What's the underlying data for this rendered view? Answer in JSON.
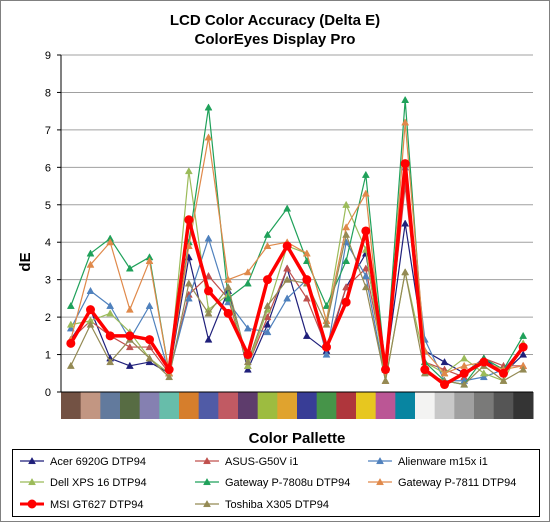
{
  "chart_data": {
    "type": "line",
    "title": "LCD Color Accuracy (Delta E)",
    "subtitle": "ColorEyes Display Pro",
    "xlabel": "Color Pallette",
    "ylabel": "dE",
    "ylim": [
      0,
      9
    ],
    "yticks": [
      "0",
      "1",
      "2",
      "3",
      "4",
      "5",
      "6",
      "7",
      "8",
      "9"
    ],
    "grid": true,
    "legend_position": "bottom",
    "palette_colors": [
      "#735244",
      "#C29682",
      "#627A9D",
      "#576C43",
      "#8580B1",
      "#67BDAA",
      "#D67E2C",
      "#505BA6",
      "#C15A63",
      "#5E3C6C",
      "#9DBC40",
      "#E0A32E",
      "#383D96",
      "#469449",
      "#AF363C",
      "#E7C71F",
      "#BB5695",
      "#0885A1",
      "#F3F3F2",
      "#C8C8C8",
      "#A0A0A0",
      "#7A7A79",
      "#555555",
      "#343434"
    ],
    "series": [
      {
        "name": "Acer 6920G DTP94",
        "color": "#1F1F7A",
        "marker": "triangle",
        "values": [
          1.4,
          2.2,
          0.9,
          0.7,
          0.8,
          0.5,
          3.6,
          1.4,
          2.7,
          0.6,
          1.8,
          3.3,
          1.5,
          1.1,
          2.8,
          3.7,
          0.6,
          4.5,
          1.1,
          0.8,
          0.5,
          0.9,
          0.5,
          1.0
        ]
      },
      {
        "name": "ASUS-G50V i1",
        "color": "#C0504D",
        "marker": "triangle",
        "values": [
          1.4,
          1.9,
          1.5,
          1.2,
          1.2,
          0.5,
          2.6,
          3.1,
          2.5,
          0.7,
          2.0,
          3.3,
          2.5,
          1.2,
          2.8,
          3.3,
          0.6,
          5.5,
          0.8,
          0.6,
          0.4,
          0.9,
          0.7,
          0.7
        ]
      },
      {
        "name": "Alienware m15x i1",
        "color": "#4F81BD",
        "marker": "triangle",
        "values": [
          1.7,
          2.7,
          2.3,
          1.4,
          2.3,
          0.5,
          2.5,
          4.1,
          2.4,
          1.7,
          1.6,
          2.5,
          3.0,
          1.0,
          4.0,
          3.1,
          0.3,
          6.0,
          1.4,
          0.3,
          0.3,
          0.4,
          0.6,
          1.2
        ]
      },
      {
        "name": "Dell XPS 16 DTP94",
        "color": "#9BBB59",
        "marker": "triangle",
        "values": [
          1.8,
          1.9,
          2.1,
          1.6,
          0.9,
          0.5,
          5.9,
          2.2,
          2.6,
          0.7,
          2.2,
          3.9,
          3.7,
          1.9,
          5.0,
          3.8,
          0.3,
          3.2,
          0.8,
          0.5,
          0.9,
          0.5,
          0.3,
          1.3
        ]
      },
      {
        "name": "Gateway P-7808u DTP94",
        "color": "#1FA15A",
        "marker": "triangle",
        "values": [
          2.3,
          3.7,
          4.1,
          3.3,
          3.6,
          0.5,
          4.0,
          7.6,
          2.5,
          2.9,
          4.2,
          4.9,
          3.5,
          2.3,
          3.5,
          5.8,
          0.6,
          7.8,
          0.8,
          0.3,
          0.2,
          0.9,
          0.6,
          1.5
        ]
      },
      {
        "name": "Gateway P-7811 DTP94",
        "color": "#E0894A",
        "marker": "triangle",
        "values": [
          1.4,
          3.4,
          4.0,
          2.2,
          3.5,
          0.5,
          3.9,
          6.8,
          3.0,
          3.2,
          3.9,
          4.0,
          3.7,
          1.9,
          4.4,
          5.3,
          0.3,
          7.2,
          1.1,
          0.5,
          0.7,
          0.8,
          0.6,
          0.7
        ]
      },
      {
        "name": "MSI GT627 DTP94",
        "color": "#FF0000",
        "marker": "circle",
        "values": [
          1.3,
          2.2,
          1.5,
          1.5,
          1.4,
          0.6,
          4.6,
          2.7,
          2.1,
          1.0,
          3.0,
          3.9,
          3.0,
          1.2,
          2.4,
          4.3,
          0.6,
          6.1,
          0.6,
          0.2,
          0.5,
          0.8,
          0.5,
          1.2
        ]
      },
      {
        "name": "Toshiba X305 DTP94",
        "color": "#948A54",
        "marker": "triangle",
        "values": [
          0.7,
          1.8,
          0.8,
          1.4,
          0.9,
          0.4,
          2.9,
          2.1,
          2.8,
          0.8,
          2.3,
          3.0,
          2.9,
          1.8,
          4.2,
          2.8,
          0.3,
          3.2,
          0.5,
          0.3,
          0.2,
          0.7,
          0.3,
          0.6
        ]
      }
    ]
  }
}
